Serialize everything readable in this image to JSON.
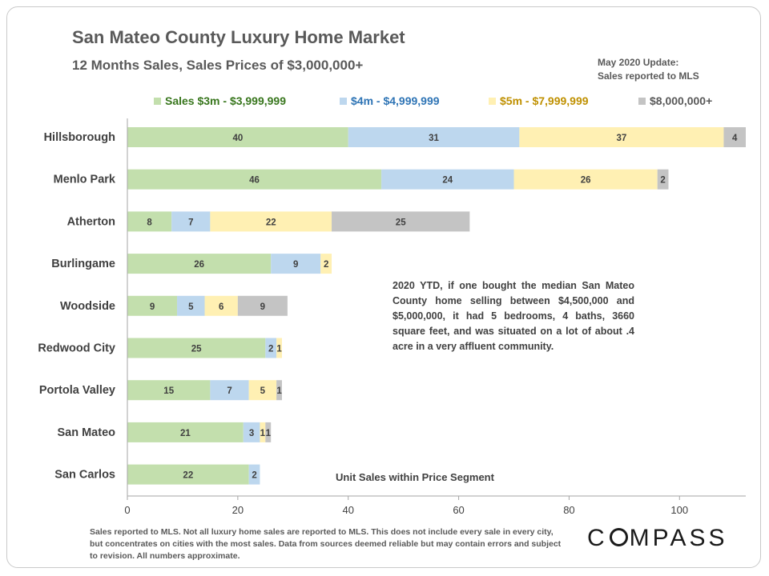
{
  "header": {
    "title": "San Mateo County Luxury Home Market",
    "subtitle": "12 Months Sales, Sales Prices of $3,000,000+",
    "update_line1": "May 2020 Update:",
    "update_line2": "Sales reported to MLS"
  },
  "colors": {
    "seg1": "#c3dfad",
    "seg2": "#bdd7ee",
    "seg3": "#fff0b3",
    "seg4": "#c4c4c4",
    "seg1_text": "#38761d",
    "seg2_text": "#2e74b5",
    "seg3_text": "#bf9000",
    "seg4_text": "#595959"
  },
  "chart_data": {
    "type": "bar",
    "orientation": "horizontal",
    "stacked": true,
    "categories": [
      "Hillsborough",
      "Menlo Park",
      "Atherton",
      "Burlingame",
      "Woodside",
      "Redwood City",
      "Portola Valley",
      "San Mateo",
      "San Carlos"
    ],
    "series": [
      {
        "name": "Sales $3m - $3,999,999",
        "values": [
          40,
          46,
          8,
          26,
          9,
          25,
          15,
          21,
          22
        ]
      },
      {
        "name": "$4m - $4,999,999",
        "values": [
          31,
          24,
          7,
          9,
          5,
          2,
          7,
          3,
          2
        ]
      },
      {
        "name": "$5m - $7,999,999",
        "values": [
          37,
          26,
          22,
          2,
          6,
          1,
          5,
          1,
          0
        ]
      },
      {
        "name": "$8,000,000+",
        "values": [
          4,
          2,
          25,
          0,
          9,
          0,
          1,
          1,
          0
        ]
      }
    ],
    "xlim": [
      0,
      112
    ],
    "xticks": [
      0,
      20,
      40,
      60,
      80,
      100
    ],
    "xlabel": "Unit Sales within Price Segment",
    "legend": "top",
    "grid": false
  },
  "annotation": "2020 YTD, if one bought the median San Mateo County home selling between $4,500,000 and $5,000,000, it had 5 bedrooms, 4 baths, 3660 square feet, and was situated on a lot of about .4 acre in a very affluent community.",
  "footer": {
    "disclaimer": "Sales reported to MLS. Not all luxury home sales are reported to MLS. This does not include every sale in every city, but concentrates on cities with the most sales. Data from sources deemed reliable but may contain errors and subject to revision. All numbers approximate.",
    "logo": "COMPASS"
  }
}
